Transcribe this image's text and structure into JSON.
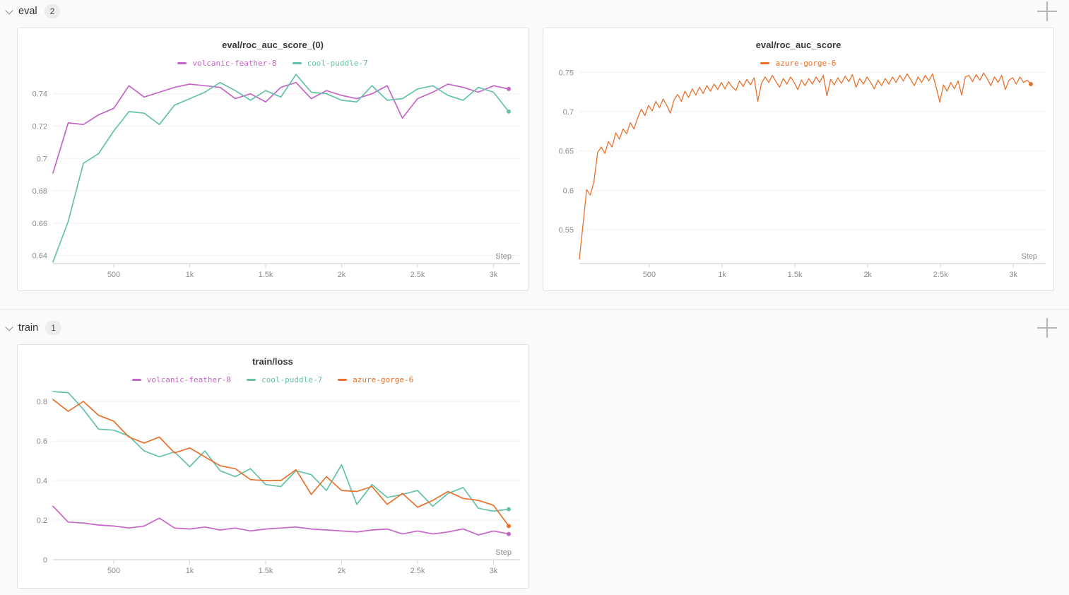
{
  "sections": [
    {
      "title": "eval",
      "count": "2"
    },
    {
      "title": "train",
      "count": "1"
    }
  ],
  "xaxis_label": "Step",
  "colors": {
    "volcanic-feather-8": "#c565c8",
    "cool-puddle-7": "#64c1aa",
    "azure-gorge-6": "#e8712c",
    "panel_border": "#e2e2e2",
    "grid": "#f0f0f0",
    "axis": "#dcdcdc",
    "tick_text": "#8c8c8c",
    "page_bg": "#fafafa"
  },
  "chart_data": [
    {
      "type": "line",
      "title": "eval/roc_auc_score_(0)",
      "xlabel": "Step",
      "legend_position": "top",
      "grid": "horizontal",
      "x_start": 100,
      "x_step": 100,
      "xlim": [
        100,
        3100
      ],
      "ylim": [
        0.635,
        0.753
      ],
      "xticks": [
        {
          "v": 500,
          "label": "500"
        },
        {
          "v": 1000,
          "label": "1k"
        },
        {
          "v": 1500,
          "label": "1.5k"
        },
        {
          "v": 2000,
          "label": "2k"
        },
        {
          "v": 2500,
          "label": "2.5k"
        },
        {
          "v": 3000,
          "label": "3k"
        }
      ],
      "yticks": [
        {
          "v": 0.64,
          "label": "0.64"
        },
        {
          "v": 0.66,
          "label": "0.66"
        },
        {
          "v": 0.68,
          "label": "0.68"
        },
        {
          "v": 0.7,
          "label": "0.7"
        },
        {
          "v": 0.72,
          "label": "0.72"
        },
        {
          "v": 0.74,
          "label": "0.74"
        }
      ],
      "series": [
        {
          "name": "volcanic-feather-8",
          "color": "#c565c8",
          "values": [
            0.691,
            0.722,
            0.721,
            0.727,
            0.731,
            0.745,
            0.738,
            0.741,
            0.744,
            0.746,
            0.745,
            0.744,
            0.737,
            0.74,
            0.735,
            0.744,
            0.747,
            0.737,
            0.742,
            0.739,
            0.737,
            0.74,
            0.745,
            0.725,
            0.737,
            0.741,
            0.746,
            0.744,
            0.741,
            0.745,
            0.743
          ]
        },
        {
          "name": "cool-puddle-7",
          "color": "#64c1aa",
          "values": [
            0.636,
            0.661,
            0.697,
            0.703,
            0.717,
            0.729,
            0.728,
            0.721,
            0.733,
            0.737,
            0.741,
            0.747,
            0.742,
            0.736,
            0.742,
            0.738,
            0.752,
            0.741,
            0.74,
            0.736,
            0.735,
            0.745,
            0.736,
            0.737,
            0.743,
            0.745,
            0.739,
            0.736,
            0.744,
            0.741,
            0.729
          ]
        }
      ]
    },
    {
      "type": "line",
      "title": "eval/roc_auc_score",
      "xlabel": "Step",
      "legend_position": "top",
      "grid": "horizontal",
      "x_start": 20,
      "x_step": 25,
      "xlim": [
        20,
        3120
      ],
      "ylim": [
        0.507,
        0.761
      ],
      "xticks": [
        {
          "v": 500,
          "label": "500"
        },
        {
          "v": 1000,
          "label": "1k"
        },
        {
          "v": 1500,
          "label": "1.5k"
        },
        {
          "v": 2000,
          "label": "2k"
        },
        {
          "v": 2500,
          "label": "2.5k"
        },
        {
          "v": 3000,
          "label": "3k"
        }
      ],
      "yticks": [
        {
          "v": 0.55,
          "label": "0.55"
        },
        {
          "v": 0.6,
          "label": "0.6"
        },
        {
          "v": 0.65,
          "label": "0.65"
        },
        {
          "v": 0.7,
          "label": "0.7"
        },
        {
          "v": 0.75,
          "label": "0.75"
        }
      ],
      "series": [
        {
          "name": "azure-gorge-6",
          "color": "#e8712c",
          "values": [
            0.513,
            0.557,
            0.601,
            0.594,
            0.611,
            0.648,
            0.655,
            0.647,
            0.662,
            0.655,
            0.673,
            0.665,
            0.678,
            0.672,
            0.686,
            0.678,
            0.692,
            0.703,
            0.695,
            0.708,
            0.701,
            0.713,
            0.705,
            0.716,
            0.708,
            0.698,
            0.715,
            0.722,
            0.713,
            0.726,
            0.718,
            0.729,
            0.721,
            0.731,
            0.723,
            0.733,
            0.726,
            0.735,
            0.728,
            0.737,
            0.729,
            0.738,
            0.731,
            0.727,
            0.739,
            0.732,
            0.741,
            0.734,
            0.743,
            0.713,
            0.736,
            0.744,
            0.737,
            0.746,
            0.738,
            0.731,
            0.742,
            0.735,
            0.744,
            0.737,
            0.728,
            0.74,
            0.733,
            0.742,
            0.735,
            0.744,
            0.737,
            0.746,
            0.72,
            0.741,
            0.734,
            0.743,
            0.736,
            0.745,
            0.738,
            0.747,
            0.731,
            0.742,
            0.735,
            0.744,
            0.737,
            0.729,
            0.74,
            0.733,
            0.742,
            0.735,
            0.744,
            0.737,
            0.746,
            0.739,
            0.748,
            0.741,
            0.733,
            0.744,
            0.737,
            0.746,
            0.739,
            0.748,
            0.731,
            0.712,
            0.734,
            0.726,
            0.737,
            0.729,
            0.739,
            0.721,
            0.744,
            0.746,
            0.738,
            0.747,
            0.74,
            0.749,
            0.742,
            0.733,
            0.744,
            0.737,
            0.746,
            0.728,
            0.74,
            0.743,
            0.735,
            0.744,
            0.737,
            0.74,
            0.735
          ]
        }
      ]
    },
    {
      "type": "line",
      "title": "train/loss",
      "xlabel": "Step",
      "legend_position": "top",
      "grid": "horizontal",
      "x_start": 100,
      "x_step": 100,
      "xlim": [
        100,
        3100
      ],
      "ylim": [
        0,
        0.872
      ],
      "xticks": [
        {
          "v": 500,
          "label": "500"
        },
        {
          "v": 1000,
          "label": "1k"
        },
        {
          "v": 1500,
          "label": "1.5k"
        },
        {
          "v": 2000,
          "label": "2k"
        },
        {
          "v": 2500,
          "label": "2.5k"
        },
        {
          "v": 3000,
          "label": "3k"
        }
      ],
      "yticks": [
        {
          "v": 0,
          "label": "0"
        },
        {
          "v": 0.2,
          "label": "0.2"
        },
        {
          "v": 0.4,
          "label": "0.4"
        },
        {
          "v": 0.6,
          "label": "0.6"
        },
        {
          "v": 0.8,
          "label": "0.8"
        }
      ],
      "series": [
        {
          "name": "volcanic-feather-8",
          "color": "#c565c8",
          "values": [
            0.27,
            0.19,
            0.185,
            0.175,
            0.17,
            0.16,
            0.17,
            0.21,
            0.16,
            0.155,
            0.165,
            0.15,
            0.16,
            0.145,
            0.155,
            0.16,
            0.165,
            0.155,
            0.15,
            0.145,
            0.14,
            0.15,
            0.155,
            0.13,
            0.145,
            0.13,
            0.14,
            0.155,
            0.125,
            0.145,
            0.13
          ]
        },
        {
          "name": "cool-puddle-7",
          "color": "#64c1aa",
          "values": [
            0.85,
            0.845,
            0.76,
            0.66,
            0.655,
            0.625,
            0.55,
            0.52,
            0.545,
            0.47,
            0.55,
            0.45,
            0.42,
            0.46,
            0.38,
            0.37,
            0.45,
            0.43,
            0.35,
            0.48,
            0.28,
            0.38,
            0.315,
            0.33,
            0.35,
            0.27,
            0.335,
            0.365,
            0.26,
            0.245,
            0.255
          ]
        },
        {
          "name": "azure-gorge-6",
          "color": "#e8712c",
          "values": [
            0.81,
            0.75,
            0.8,
            0.73,
            0.7,
            0.62,
            0.59,
            0.62,
            0.54,
            0.565,
            0.52,
            0.475,
            0.46,
            0.405,
            0.4,
            0.4,
            0.455,
            0.33,
            0.42,
            0.35,
            0.345,
            0.37,
            0.28,
            0.335,
            0.265,
            0.3,
            0.345,
            0.31,
            0.3,
            0.275,
            0.17
          ]
        }
      ]
    }
  ]
}
